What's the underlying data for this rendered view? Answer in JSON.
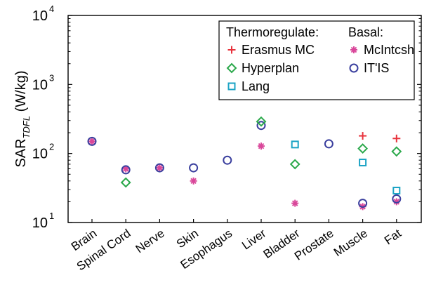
{
  "chart_data": {
    "type": "scatter",
    "title": "",
    "xlabel": "",
    "ylabel": "SAR",
    "ylabel_subscript": "TDFL",
    "ylabel_unit": "(W/kg)",
    "yscale": "log",
    "ylim": [
      10,
      10000
    ],
    "y_ticks": [
      {
        "value": 10,
        "base": "10",
        "exp": "1"
      },
      {
        "value": 100,
        "base": "10",
        "exp": "2"
      },
      {
        "value": 1000,
        "base": "10",
        "exp": "3"
      },
      {
        "value": 10000,
        "base": "10",
        "exp": "4"
      }
    ],
    "grid": false,
    "legend_position": "top-right",
    "categories": [
      "Brain",
      "Spinal Cord",
      "Nerve",
      "Skin",
      "Esophagus",
      "Liver",
      "Bladder",
      "Prostate",
      "Muscle",
      "Fat"
    ],
    "legend_groups": [
      {
        "title": "Thermoregulate:",
        "series": [
          "Erasmus MC",
          "Hyperplan",
          "Lang"
        ]
      },
      {
        "title": "Basal:",
        "series": [
          "McIntcsh",
          "IT'IS"
        ]
      }
    ],
    "series": [
      {
        "name": "Erasmus MC",
        "marker": "plus",
        "color": "#e8323c",
        "values": [
          null,
          null,
          null,
          null,
          null,
          null,
          null,
          null,
          180,
          165
        ]
      },
      {
        "name": "Hyperplan",
        "marker": "diamond",
        "color": "#2aa84a",
        "values": [
          null,
          38,
          null,
          null,
          null,
          290,
          70,
          null,
          118,
          107
        ]
      },
      {
        "name": "Lang",
        "marker": "square",
        "color": "#1ba3c4",
        "values": [
          null,
          null,
          null,
          null,
          null,
          null,
          135,
          null,
          74,
          29
        ]
      },
      {
        "name": "McIntcsh",
        "marker": "asterisk",
        "color": "#d9479a",
        "values": [
          150,
          60,
          62,
          40,
          null,
          128,
          19,
          null,
          17,
          20
        ]
      },
      {
        "name": "IT'IS",
        "marker": "circle",
        "color": "#3a3f9e",
        "values": [
          150,
          58,
          62,
          62,
          80,
          255,
          null,
          138,
          19,
          22
        ]
      }
    ]
  }
}
